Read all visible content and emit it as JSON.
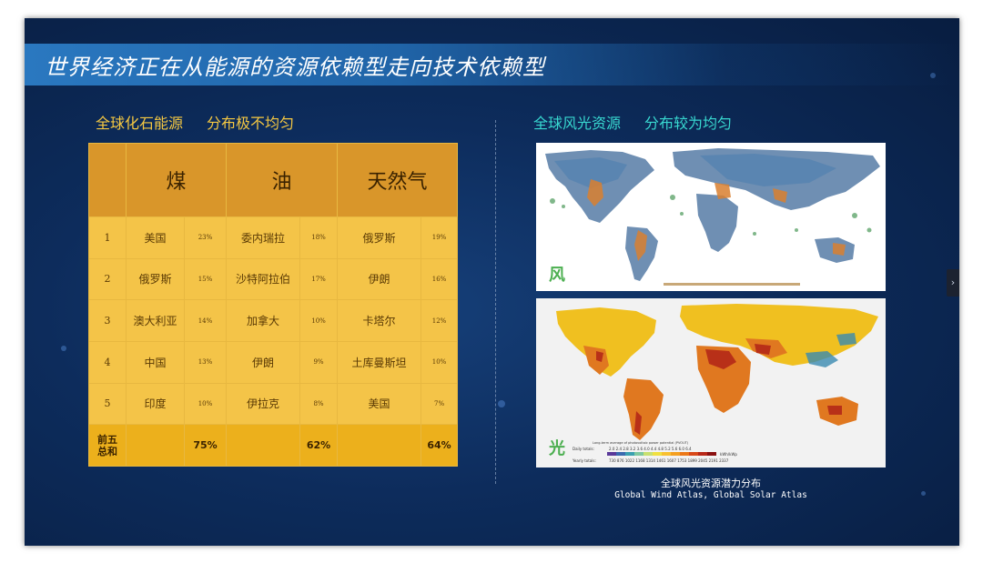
{
  "title": "世界经济正在从能源的资源依赖型走向技术依赖型",
  "left_subtitle": [
    "全球化石能源",
    "分布极不均匀"
  ],
  "right_subtitle": [
    "全球风光资源",
    "分布较为均匀"
  ],
  "table": {
    "headers": [
      "煤",
      "油",
      "天然气"
    ],
    "rows": [
      {
        "rank": "1",
        "coal": "美国",
        "coal_pct": "23%",
        "oil": "委内瑞拉",
        "oil_pct": "18%",
        "gas": "俄罗斯",
        "gas_pct": "19%"
      },
      {
        "rank": "2",
        "coal": "俄罗斯",
        "coal_pct": "15%",
        "oil": "沙特阿拉伯",
        "oil_pct": "17%",
        "gas": "伊朗",
        "gas_pct": "16%"
      },
      {
        "rank": "3",
        "coal": "澳大利亚",
        "coal_pct": "14%",
        "oil": "加拿大",
        "oil_pct": "10%",
        "gas": "卡塔尔",
        "gas_pct": "12%"
      },
      {
        "rank": "4",
        "coal": "中国",
        "coal_pct": "13%",
        "oil": "伊朗",
        "oil_pct": "9%",
        "gas": "土库曼斯坦",
        "gas_pct": "10%"
      },
      {
        "rank": "5",
        "coal": "印度",
        "coal_pct": "10%",
        "oil": "伊拉克",
        "oil_pct": "8%",
        "gas": "美国",
        "gas_pct": "7%"
      }
    ],
    "total": {
      "label_line1": "前五",
      "label_line2": "总和",
      "coal": "75%",
      "oil": "62%",
      "gas": "64%"
    }
  },
  "wind_map": {
    "label": "风"
  },
  "solar_map": {
    "label": "光",
    "legend_title": "Long-term average of photovoltaic power potential (PVOUT)",
    "daily_label": "Daily totals:",
    "daily_values": [
      "2.0",
      "2.4",
      "2.8",
      "3.2",
      "3.6",
      "4.0",
      "4.4",
      "4.8",
      "5.2",
      "5.6",
      "6.0",
      "6.4"
    ],
    "yearly_label": "Yearly totals:",
    "yearly_values": [
      "730",
      "876",
      "1022",
      "1168",
      "1314",
      "1461",
      "1607",
      "1753",
      "1899",
      "2045",
      "2191",
      "2337"
    ],
    "unit": "kWh/kWp",
    "legend_colors": [
      "#5a3a9a",
      "#3a6ab0",
      "#3aa0b0",
      "#7ec8a0",
      "#c8e070",
      "#f0e040",
      "#f8c030",
      "#f4a020",
      "#ec7818",
      "#d84818",
      "#b82818",
      "#8a1010"
    ]
  },
  "caption": {
    "zh": "全球风光资源潜力分布",
    "en": "Global Wind Atlas, Global Solar Atlas"
  },
  "colors": {
    "accent_gold": "#f5c842",
    "accent_cyan": "#38d8d0",
    "table_header": "#d9962a",
    "table_cell": "#f4c448"
  }
}
